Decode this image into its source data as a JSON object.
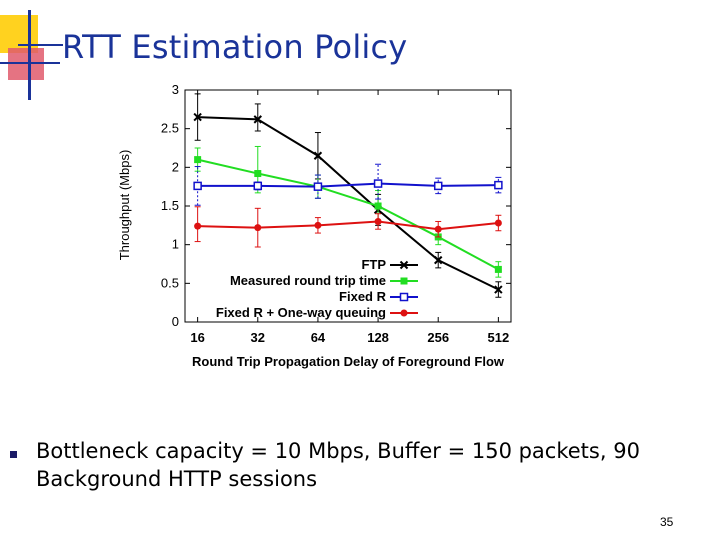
{
  "slide": {
    "title": "RTT Estimation Policy",
    "bullet": "Bottleneck capacity = 10 Mbps, Buffer = 150 packets, 90 Background HTTP sessions",
    "page_number": "35",
    "colors": {
      "title": "#1a3399",
      "deco_yellow": "#ffd21f",
      "deco_red": "#d4213d",
      "deco_blue": "#1a3399"
    }
  },
  "chart_data": {
    "type": "line",
    "title": "",
    "xlabel": "Round Trip Propagation Delay of Foreground Flow",
    "ylabel": "Throughput (Mbps)",
    "x_scale": "log2",
    "categories": [
      "16",
      "32",
      "64",
      "128",
      "256",
      "512"
    ],
    "x": [
      16,
      32,
      64,
      128,
      256,
      512
    ],
    "yticks": [
      "0",
      "0.5",
      "1",
      "1.5",
      "2",
      "2.5",
      "3"
    ],
    "ylim": [
      0,
      3
    ],
    "grid": false,
    "legend_position": "bottom-right",
    "series": [
      {
        "name": "FTP",
        "color": "#000000",
        "marker": "x",
        "values": [
          2.65,
          2.62,
          2.15,
          1.45,
          0.8,
          0.42
        ],
        "err_low": [
          0.3,
          0.15,
          0.3,
          0.2,
          0.1,
          0.1
        ],
        "err_high": [
          0.3,
          0.2,
          0.3,
          0.2,
          0.1,
          0.1
        ]
      },
      {
        "name": "Measured round trip time",
        "color": "#22dd22",
        "marker": "square",
        "values": [
          2.1,
          1.92,
          1.75,
          1.5,
          1.1,
          0.68
        ],
        "err_low": [
          0.15,
          0.25,
          0.15,
          0.2,
          0.1,
          0.1
        ],
        "err_high": [
          0.15,
          0.35,
          0.15,
          0.2,
          0.1,
          0.1
        ]
      },
      {
        "name": "Fixed R",
        "color": "#1111cc",
        "marker": "square-open",
        "values": [
          1.76,
          1.76,
          1.75,
          1.79,
          1.76,
          1.77
        ],
        "err_low": [
          0.25,
          0.05,
          0.15,
          0.2,
          0.1,
          0.1
        ],
        "err_high": [
          0.25,
          0.05,
          0.15,
          0.25,
          0.1,
          0.1
        ]
      },
      {
        "name": "Fixed R + One-way queuing",
        "color": "#dd1111",
        "marker": "circle",
        "values": [
          1.24,
          1.22,
          1.25,
          1.3,
          1.2,
          1.28
        ],
        "err_low": [
          0.2,
          0.25,
          0.1,
          0.1,
          0.1,
          0.1
        ],
        "err_high": [
          0.25,
          0.25,
          0.1,
          0.1,
          0.1,
          0.1
        ]
      }
    ]
  }
}
